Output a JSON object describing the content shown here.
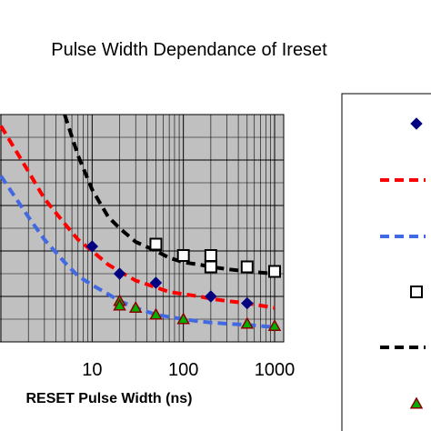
{
  "chart_data": {
    "type": "scatter",
    "title": "Pulse Width Dependance of Ireset",
    "xlabel": "RESET Pulse Width (ns)",
    "ylabel": "",
    "x_scale": "log",
    "xlim": [
      1,
      1000
    ],
    "ylim": [
      0,
      1
    ],
    "x_tick_labels": [
      "10",
      "100",
      "1000"
    ],
    "x_ticks": [
      10,
      100,
      1000
    ],
    "grid": true,
    "plot_background": "#c0c0c0",
    "legend_position": "right",
    "series": [
      {
        "marker": "diamond",
        "color": "#000080",
        "x": [
          10,
          20,
          50,
          200,
          500
        ],
        "y": [
          0.42,
          0.3,
          0.26,
          0.2,
          0.17
        ]
      },
      {
        "marker": "square-open",
        "color": "#000000",
        "x": [
          50,
          100,
          200,
          200,
          500,
          1000
        ],
        "y": [
          0.43,
          0.38,
          0.38,
          0.33,
          0.33,
          0.31
        ]
      },
      {
        "marker": "triangle",
        "color": "#00b000",
        "edge_color": "#8b0000",
        "x": [
          20,
          20,
          30,
          50,
          100,
          500,
          1000
        ],
        "y": [
          0.18,
          0.16,
          0.15,
          0.12,
          0.1,
          0.08,
          0.07
        ]
      },
      {
        "line": "dashed",
        "color": "#ff0000",
        "x": [
          1,
          2,
          3,
          5,
          7,
          10,
          15,
          20,
          30,
          50,
          70,
          100,
          150,
          200,
          300,
          500,
          700,
          1000
        ],
        "y": [
          0.95,
          0.75,
          0.63,
          0.52,
          0.45,
          0.4,
          0.34,
          0.31,
          0.27,
          0.24,
          0.22,
          0.21,
          0.2,
          0.19,
          0.18,
          0.17,
          0.16,
          0.15
        ]
      },
      {
        "line": "dashed",
        "color": "#4169e1",
        "x": [
          1,
          2,
          3,
          5,
          7,
          10,
          15,
          20,
          30,
          50,
          70,
          100,
          150,
          200,
          300,
          500,
          700,
          1000
        ],
        "y": [
          0.73,
          0.55,
          0.45,
          0.35,
          0.29,
          0.25,
          0.21,
          0.18,
          0.15,
          0.12,
          0.11,
          0.1,
          0.09,
          0.085,
          0.08,
          0.075,
          0.07,
          0.065
        ]
      },
      {
        "line": "dashed",
        "color": "#000000",
        "x": [
          5,
          7,
          10,
          15,
          20,
          30,
          50,
          70,
          100,
          150,
          200,
          300,
          500,
          700,
          1000
        ],
        "y": [
          1.0,
          0.82,
          0.67,
          0.55,
          0.5,
          0.44,
          0.4,
          0.37,
          0.35,
          0.34,
          0.33,
          0.32,
          0.31,
          0.305,
          0.3
        ]
      }
    ],
    "legend": [
      {
        "marker": "diamond",
        "color": "#000080"
      },
      {
        "line": "dashed",
        "color": "#ff0000"
      },
      {
        "line": "dashed",
        "color": "#4169e1"
      },
      {
        "marker": "square-open",
        "color": "#000000"
      },
      {
        "line": "dashed",
        "color": "#000000"
      },
      {
        "marker": "triangle",
        "color": "#00b000",
        "edge_color": "#8b0000"
      }
    ]
  }
}
